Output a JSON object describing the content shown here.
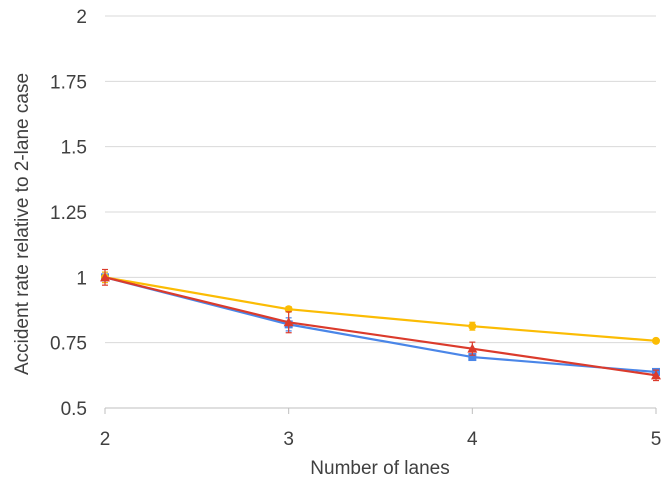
{
  "chart_data": {
    "type": "line",
    "title": "",
    "xlabel": "Number of lanes",
    "ylabel": "Accident rate relative to 2-lane case",
    "x": [
      2,
      3,
      4,
      5
    ],
    "xlim": [
      2,
      5
    ],
    "ylim": [
      0.5,
      2
    ],
    "x_ticks": [
      "2",
      "3",
      "4",
      "5"
    ],
    "y_ticks": [
      "0.5",
      "0.75",
      "1",
      "1.25",
      "1.5",
      "1.75",
      "2"
    ],
    "grid": true,
    "legend": "none",
    "series": [
      {
        "color": "#4a86e8",
        "marker": "square",
        "values": [
          1.0,
          0.82,
          0.695,
          0.638
        ],
        "error": [
          0.02,
          0.025,
          0.01,
          0.01
        ]
      },
      {
        "color": "#fbbc04",
        "marker": "circle",
        "values": [
          1.0,
          0.878,
          0.813,
          0.757
        ],
        "error": [
          0.02,
          0.01,
          0.015,
          0.008
        ]
      },
      {
        "color": "#db3b2c",
        "marker": "triangle",
        "values": [
          1.0,
          0.828,
          0.727,
          0.625
        ],
        "error": [
          0.03,
          0.04,
          0.025,
          0.02
        ]
      }
    ]
  }
}
